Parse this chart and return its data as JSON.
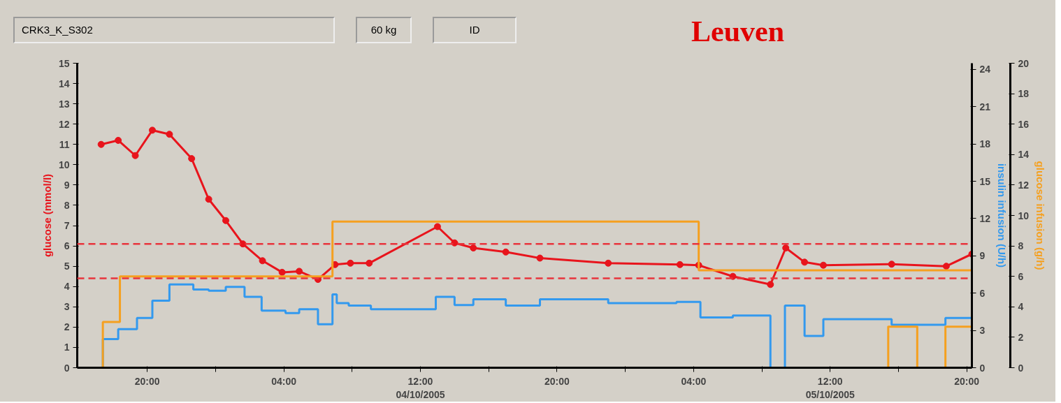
{
  "chart_data": {
    "type": "line",
    "title": "Leuven",
    "annotations": [
      "CRK3_K_S302",
      "60 kg",
      "ID"
    ],
    "ylabel": "glucose (mmol/l)",
    "y2label": "insulin infusion (U/h)",
    "y3label": "glucose infusion (g/h)",
    "xlim": [
      "2005-10-03T15:54",
      "2005-10-05T20:18"
    ],
    "xticks": [
      {
        "value": "2005-10-03T20:00",
        "label": "20:00"
      },
      {
        "value": "2005-10-04T00:00",
        "label": null
      },
      {
        "value": "2005-10-04T04:00",
        "label": "04:00"
      },
      {
        "value": "2005-10-04T08:00",
        "label": null
      },
      {
        "value": "2005-10-04T12:00",
        "label": "12:00\n04/10/2005"
      },
      {
        "value": "2005-10-04T16:00",
        "label": null
      },
      {
        "value": "2005-10-04T20:00",
        "label": "20:00"
      },
      {
        "value": "2005-10-05T00:00",
        "label": null
      },
      {
        "value": "2005-10-05T04:00",
        "label": "04:00"
      },
      {
        "value": "2005-10-05T08:00",
        "label": null
      },
      {
        "value": "2005-10-05T12:00",
        "label": "12:00\n05/10/2005"
      },
      {
        "value": "2005-10-05T16:00",
        "label": null
      },
      {
        "value": "2005-10-05T20:00",
        "label": "20:00"
      }
    ],
    "ylim": [
      0,
      15
    ],
    "yticks": [
      0,
      1,
      2,
      3,
      4,
      5,
      6,
      7,
      8,
      9,
      10,
      11,
      12,
      13,
      14,
      15
    ],
    "y2lim": [
      0,
      24.5
    ],
    "y2ticks": [
      0,
      3,
      6,
      9,
      12,
      15,
      18,
      21,
      24
    ],
    "y3lim": [
      0,
      20
    ],
    "y3ticks": [
      0,
      2,
      4,
      6,
      8,
      10,
      12,
      14,
      16,
      18,
      20
    ],
    "grid": false,
    "ref_lines": [
      {
        "axis": "y",
        "value": 6.1,
        "color": "#e8343c",
        "line_style": "dashed"
      },
      {
        "axis": "y",
        "value": 4.4,
        "color": "#e8343c",
        "line_style": "dashed"
      }
    ],
    "series": [
      {
        "marker": "circle",
        "color": "#e8141c",
        "x": [
          "2005-10-03T17:18",
          "2005-10-03T18:18",
          "2005-10-03T19:18",
          "2005-10-03T20:18",
          "2005-10-03T21:18",
          "2005-10-03T22:36",
          "2005-10-03T23:36",
          "2005-10-04T00:36",
          "2005-10-04T01:36",
          "2005-10-04T02:45",
          "2005-10-04T03:54",
          "2005-10-04T04:54",
          "2005-10-04T06:00",
          "2005-10-04T07:00",
          "2005-10-04T07:54",
          "2005-10-04T09:00",
          "2005-10-04T13:00",
          "2005-10-04T14:00",
          "2005-10-04T15:06",
          "2005-10-04T17:00",
          "2005-10-04T19:00",
          "2005-10-04T23:00",
          "2005-10-05T03:12",
          "2005-10-05T04:18",
          "2005-10-05T06:18",
          "2005-10-05T08:30",
          "2005-10-05T09:24",
          "2005-10-05T10:30",
          "2005-10-05T11:36",
          "2005-10-05T15:36",
          "2005-10-05T18:48",
          "2005-10-05T20:18"
        ],
        "values": [
          11.0,
          11.2,
          10.45,
          11.7,
          11.5,
          10.3,
          8.3,
          7.25,
          6.1,
          5.27,
          4.7,
          4.75,
          4.35,
          5.08,
          5.15,
          5.15,
          6.95,
          6.15,
          5.9,
          5.7,
          5.4,
          5.15,
          5.08,
          5.05,
          4.5,
          4.1,
          5.9,
          5.2,
          5.05,
          5.1,
          5.0,
          5.6
        ]
      },
      {
        "type": "step",
        "axis": "y2",
        "color": "#3399ee",
        "x": [
          "2005-10-03T17:24",
          "2005-10-03T17:24",
          "2005-10-03T18:18",
          "2005-10-03T19:24",
          "2005-10-03T20:18",
          "2005-10-03T21:18",
          "2005-10-03T22:42",
          "2005-10-03T23:36",
          "2005-10-04T00:36",
          "2005-10-04T01:42",
          "2005-10-04T02:42",
          "2005-10-04T04:06",
          "2005-10-04T04:54",
          "2005-10-04T06:00",
          "2005-10-04T06:51",
          "2005-10-04T07:06",
          "2005-10-04T07:48",
          "2005-10-04T09:06",
          "2005-10-04T12:54",
          "2005-10-04T14:00",
          "2005-10-04T15:06",
          "2005-10-04T17:00",
          "2005-10-04T19:00",
          "2005-10-04T23:00",
          "2005-10-05T03:00",
          "2005-10-05T04:24",
          "2005-10-05T06:18",
          "2005-10-05T08:30",
          "2005-10-05T09:21",
          "2005-10-05T10:30",
          "2005-10-05T11:36",
          "2005-10-05T15:36",
          "2005-10-05T18:45",
          "2005-10-05T20:18"
        ],
        "values": [
          0,
          2.3,
          3.1,
          4.0,
          5.4,
          6.7,
          6.3,
          6.2,
          6.5,
          5.7,
          4.6,
          4.4,
          4.7,
          3.5,
          5.9,
          5.2,
          5.0,
          4.7,
          5.7,
          5.05,
          5.5,
          5.0,
          5.5,
          5.2,
          5.3,
          4.05,
          4.2,
          0,
          5.0,
          2.55,
          3.9,
          3.45,
          4.0,
          4.0
        ]
      },
      {
        "type": "step",
        "axis": "y3",
        "color": "#f5a020",
        "x": [
          "2005-10-03T17:24",
          "2005-10-03T17:24",
          "2005-10-03T18:24",
          "2005-10-04T06:51",
          "2005-10-05T04:18",
          "2005-10-05T20:18"
        ],
        "values": [
          0,
          3.0,
          6.0,
          9.6,
          6.4,
          6.4
        ]
      },
      {
        "type": "line",
        "axis": "y3",
        "color": "#f5a020",
        "x": [
          "2005-10-05T15:24",
          "2005-10-05T15:24",
          "2005-10-05T17:06",
          "2005-10-05T17:06",
          "2005-10-05T18:00",
          "2005-10-05T18:45",
          "2005-10-05T18:45",
          "2005-10-05T20:18"
        ],
        "values": [
          0,
          2.7,
          2.7,
          0,
          null,
          0,
          2.7,
          2.7
        ]
      }
    ]
  }
}
